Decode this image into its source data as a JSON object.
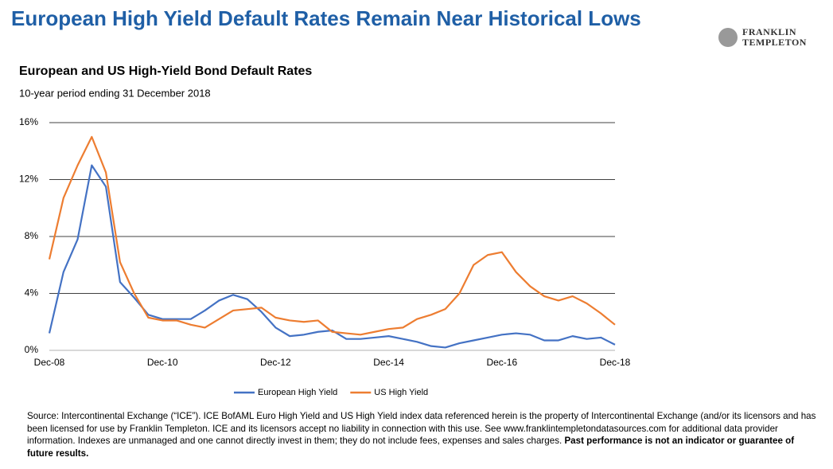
{
  "header": {
    "title": "European High Yield Default Rates Remain Near Historical Lows",
    "logo": [
      "FRANKLIN",
      "TEMPLETON"
    ]
  },
  "chart_data": {
    "type": "line",
    "title": "European and US High-Yield Bond Default Rates",
    "subtitle": "10-year period ending 31 December 2018",
    "categories": [
      "Dec-08",
      null,
      null,
      null,
      null,
      null,
      null,
      null,
      "Dec-10",
      null,
      null,
      null,
      null,
      null,
      null,
      null,
      "Dec-12",
      null,
      null,
      null,
      null,
      null,
      null,
      null,
      "Dec-14",
      null,
      null,
      null,
      null,
      null,
      null,
      null,
      "Dec-16",
      null,
      null,
      null,
      null,
      null,
      null,
      null,
      "Dec-18"
    ],
    "series": [
      {
        "name": "European High Yield",
        "color": "#4472c4",
        "values": [
          1.2,
          5.5,
          7.8,
          13.0,
          11.5,
          4.8,
          3.7,
          2.5,
          2.2,
          2.2,
          2.2,
          2.8,
          3.5,
          3.9,
          3.6,
          2.7,
          1.6,
          1.0,
          1.1,
          1.3,
          1.4,
          0.8,
          0.8,
          0.9,
          1.0,
          0.8,
          0.6,
          0.3,
          0.2,
          0.5,
          0.7,
          0.9,
          1.1,
          1.2,
          1.1,
          0.7,
          0.7,
          1.0,
          0.8,
          0.9,
          0.4
        ]
      },
      {
        "name": "US High Yield",
        "color": "#ed7d31",
        "values": [
          6.4,
          10.7,
          13.0,
          15.0,
          12.5,
          6.2,
          4.0,
          2.3,
          2.1,
          2.1,
          1.8,
          1.6,
          2.2,
          2.8,
          2.9,
          3.0,
          2.3,
          2.1,
          2.0,
          2.1,
          1.3,
          1.2,
          1.1,
          1.3,
          1.5,
          1.6,
          2.2,
          2.5,
          2.9,
          4.0,
          6.0,
          6.7,
          6.9,
          5.5,
          4.5,
          3.8,
          3.5,
          3.8,
          3.3,
          2.6,
          1.8
        ]
      }
    ],
    "ylim": [
      0,
      16
    ],
    "yticks": [
      {
        "value": 0,
        "label": "0%"
      },
      {
        "value": 4,
        "label": "4%"
      },
      {
        "value": 8,
        "label": "8%"
      },
      {
        "value": 12,
        "label": "12%"
      },
      {
        "value": 16,
        "label": "16%"
      }
    ],
    "grid": true,
    "legend": "bottom"
  },
  "footer": {
    "source": "Source: Intercontinental Exchange (“ICE”). ICE BofAML Euro High Yield and US High Yield index data referenced herein is the property of Intercontinental Exchange (and/or its licensors and has been licensed for use by Franklin Templeton. ICE and its licensors accept no liability in connection with this use. See www.franklintempletondatasources.com for additional data provider information. Indexes are unmanaged and one cannot directly invest in them; they do not include fees, expenses and sales charges.",
    "disclaimer": "Past performance is not an indicator or guarantee of future results."
  }
}
